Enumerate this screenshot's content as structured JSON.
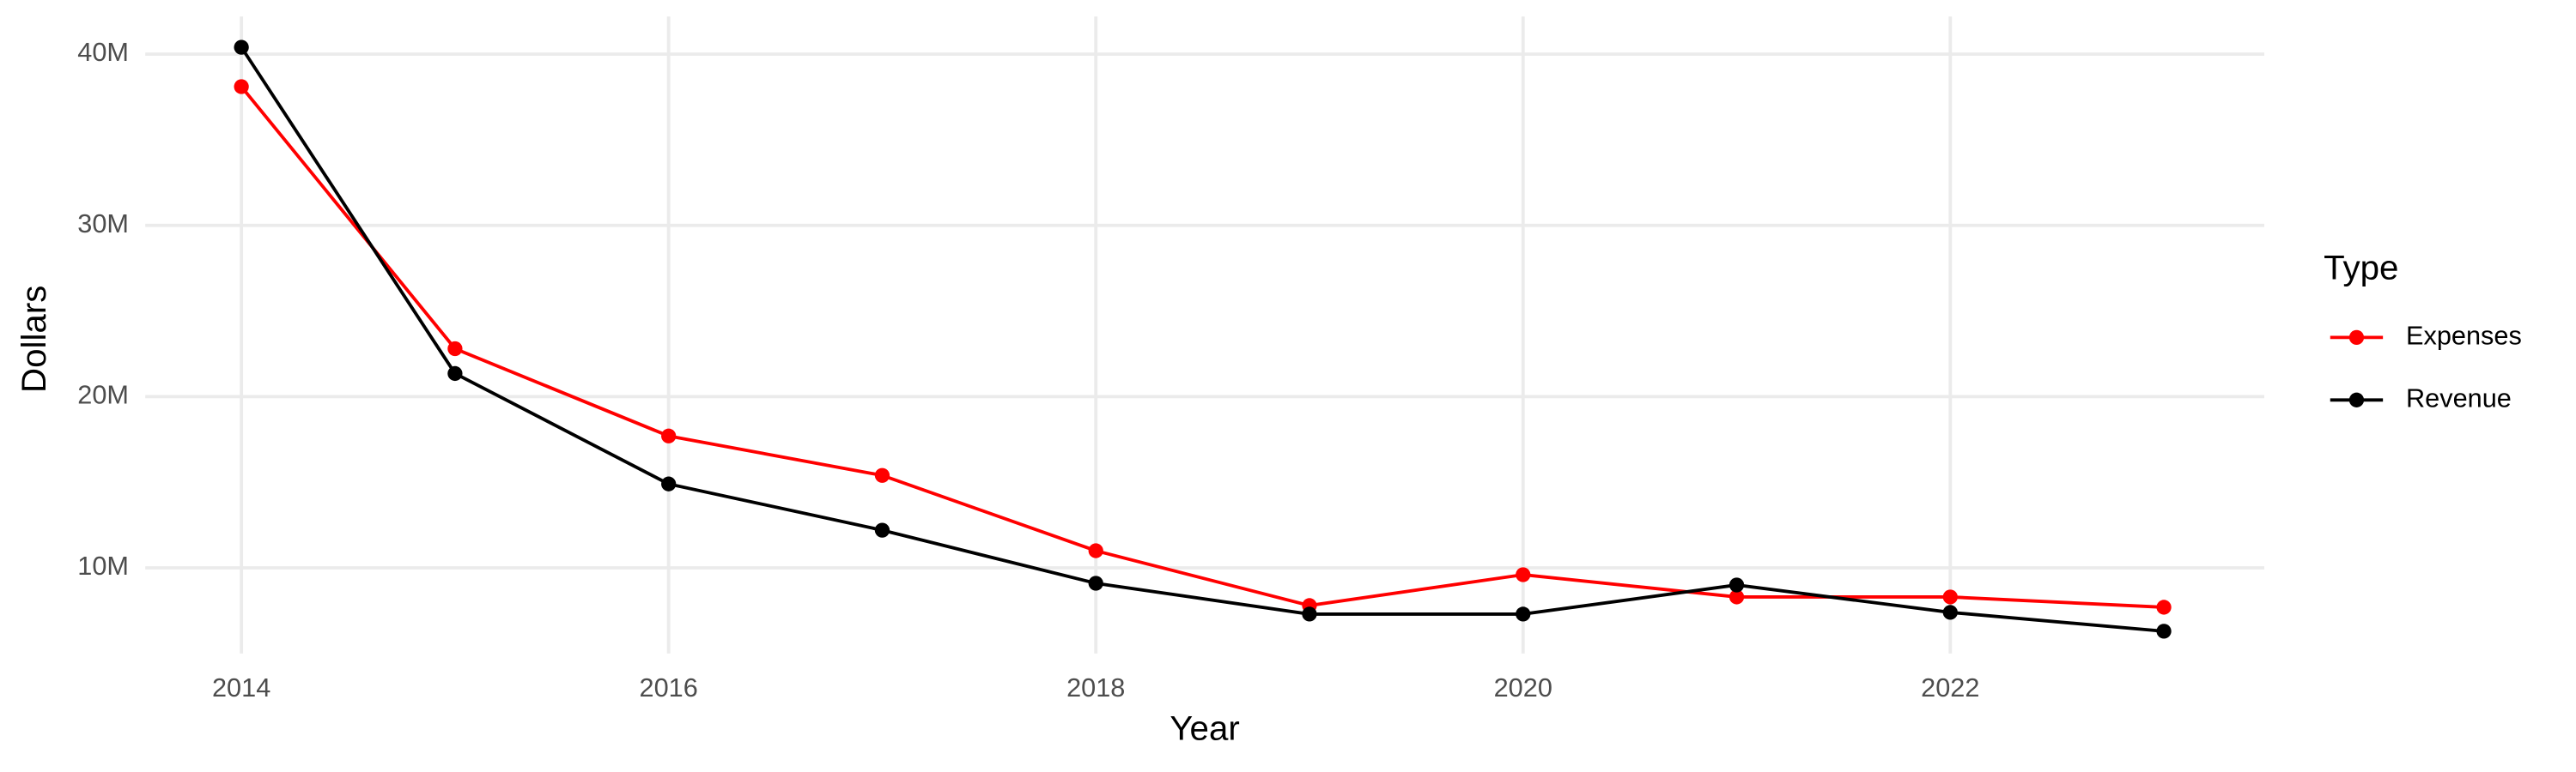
{
  "chart_data": {
    "type": "line",
    "x_label": "Year",
    "y_label": "Dollars",
    "x": [
      2014,
      2015,
      2016,
      2017,
      2018,
      2019,
      2020,
      2021,
      2022,
      2023
    ],
    "series": [
      {
        "name": "Expenses",
        "color": "#ff0000",
        "values": [
          38100000,
          22800000,
          17700000,
          15400000,
          11000000,
          7800000,
          9600000,
          8300000,
          8300000,
          7700000
        ]
      },
      {
        "name": "Revenue",
        "color": "#000000",
        "values": [
          40400000,
          21350000,
          14900000,
          12200000,
          9100000,
          7300000,
          7300000,
          9000000,
          7400000,
          6300000
        ]
      }
    ],
    "xlim": [
      2013.55,
      2023.47
    ],
    "xticks": [
      2014,
      2016,
      2018,
      2020,
      2022
    ],
    "ylim": [
      5000000,
      42200000
    ],
    "yticks": [
      {
        "value": 10000000,
        "label": "10M"
      },
      {
        "value": 20000000,
        "label": "20M"
      },
      {
        "value": 30000000,
        "label": "30M"
      },
      {
        "value": 40000000,
        "label": "40M"
      }
    ],
    "grid": true,
    "legend_title": "Type",
    "legend_position": "right"
  }
}
